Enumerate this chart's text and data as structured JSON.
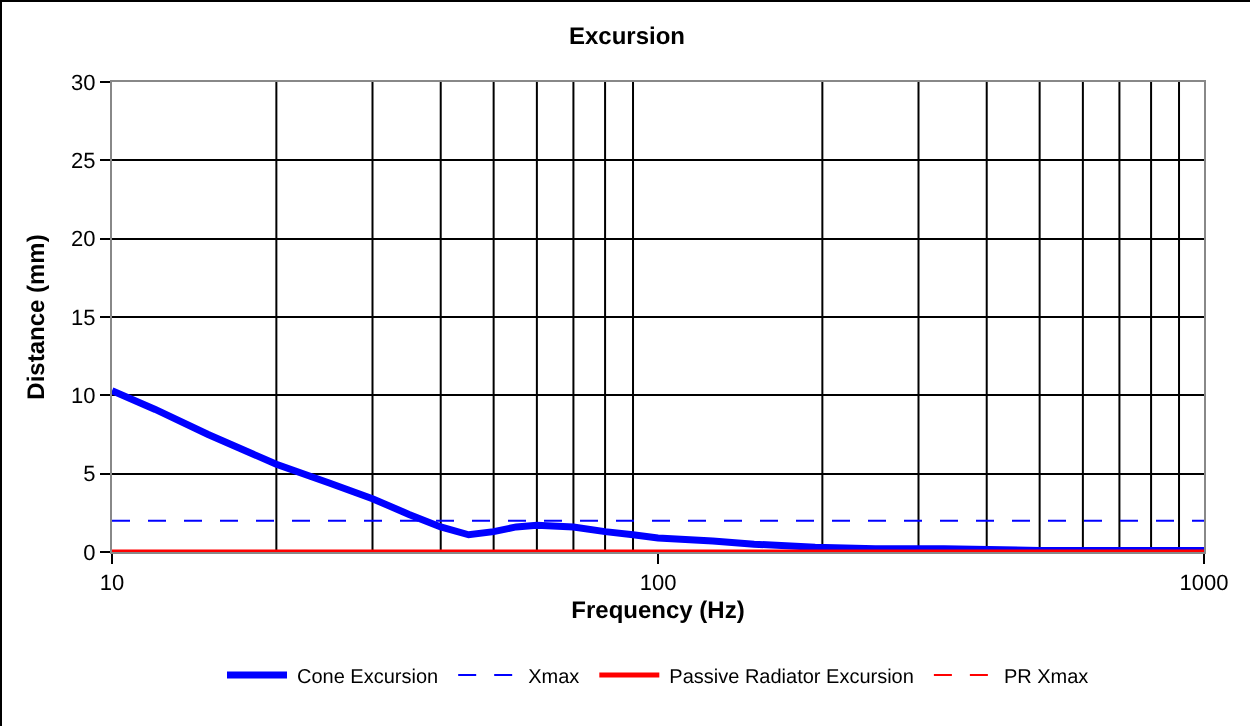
{
  "chart_data": {
    "type": "line",
    "title": "Excursion",
    "xlabel": "Frequency (Hz)",
    "ylabel": "Distance (mm)",
    "log": "x",
    "grid": true,
    "legend": "bottom",
    "marker": "none",
    "xlim": [
      10,
      1000
    ],
    "xticks": [
      10,
      100,
      1000
    ],
    "ylim": [
      0,
      30
    ],
    "yticks": [
      0,
      5,
      10,
      15,
      20,
      25,
      30
    ],
    "series": [
      {
        "name": "Cone Excursion",
        "color": "#0000ff",
        "line_style": "solid",
        "x": [
          10,
          12,
          15,
          20,
          25,
          30,
          35,
          40,
          45,
          50,
          55,
          60,
          70,
          80,
          90,
          100,
          126,
          150,
          194,
          250,
          334,
          500,
          1000
        ],
        "values": [
          10.3,
          9.1,
          7.5,
          5.6,
          4.4,
          3.4,
          2.4,
          1.6,
          1.1,
          1.3,
          1.6,
          1.7,
          1.6,
          1.3,
          1.1,
          0.9,
          0.7,
          0.5,
          0.3,
          0.2,
          0.2,
          0.1,
          0.1
        ]
      },
      {
        "name": "Xmax",
        "color": "#0000ff",
        "line_style": "dashed",
        "x": [
          10,
          1000
        ],
        "values": [
          2,
          2
        ]
      },
      {
        "name": "Passive Radiator Excursion",
        "color": "#ff0000",
        "line_style": "solid",
        "x": [
          10,
          1000
        ],
        "values": [
          0,
          0
        ]
      },
      {
        "name": "PR Xmax",
        "color": "#ff0000",
        "line_style": "dashed",
        "values": [
          null,
          null
        ]
      }
    ]
  }
}
